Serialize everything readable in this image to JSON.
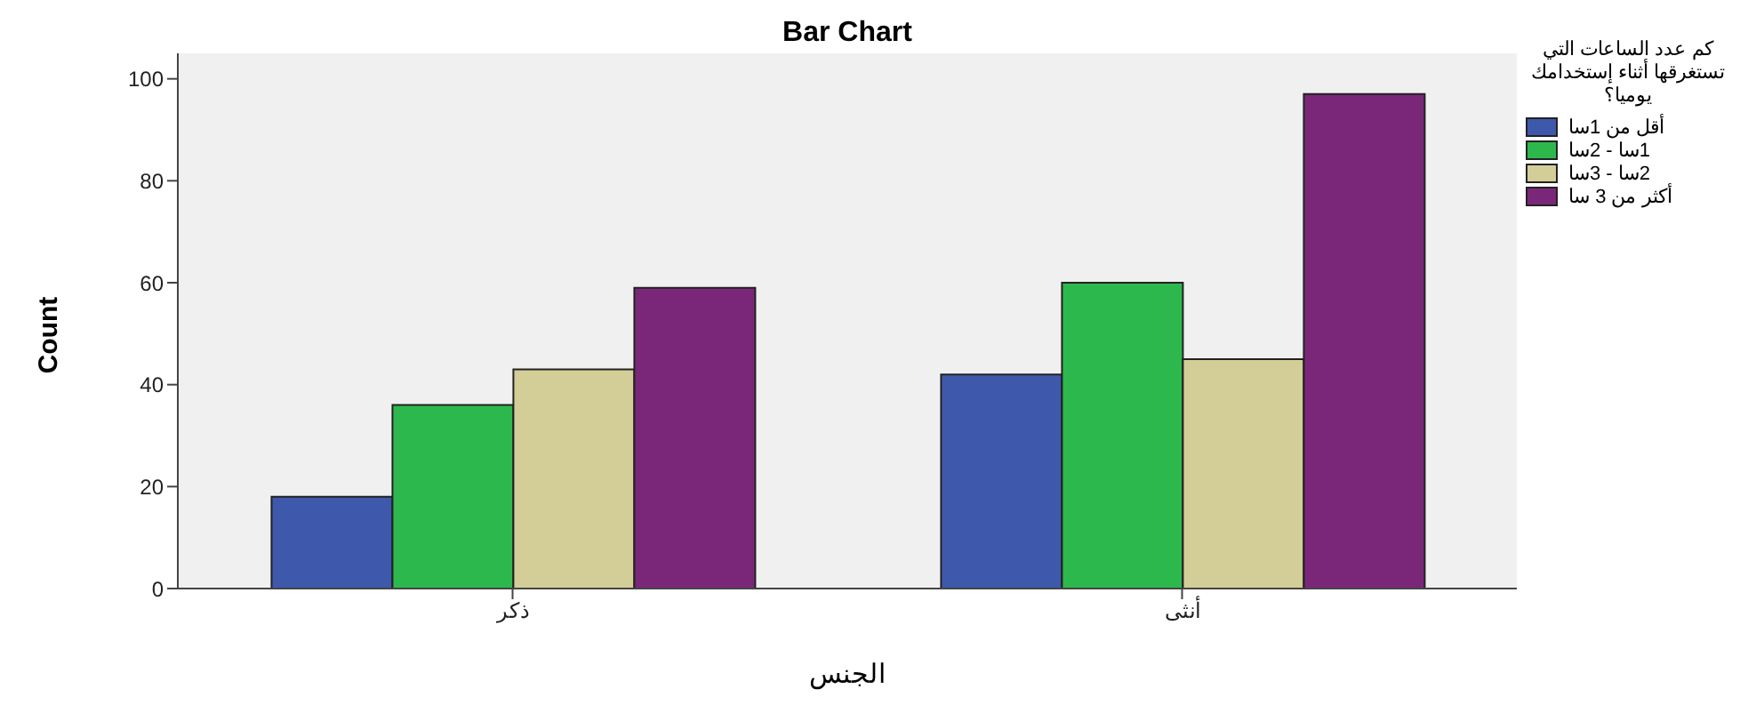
{
  "chart_data": {
    "type": "bar",
    "title": "Bar Chart",
    "xlabel": "الجنس",
    "ylabel": "Count",
    "legend_title": "كم عدد الساعات التي تستغرقها أثناء إستخدامك يوميا؟",
    "categories": [
      "ذكر",
      "أنثى"
    ],
    "series": [
      {
        "name": "أقل من 1سا",
        "color": "#3e58ac",
        "values": [
          18,
          42
        ]
      },
      {
        "name": "1سا - 2سا",
        "color": "#2db84d",
        "values": [
          36,
          60
        ]
      },
      {
        "name": "2سا - 3سا",
        "color": "#d3ce97",
        "values": [
          43,
          45
        ]
      },
      {
        "name": "أكثر من 3 سا",
        "color": "#7b2779",
        "values": [
          59,
          97
        ]
      }
    ],
    "ylim": [
      0,
      105
    ],
    "yticks": [
      0,
      20,
      40,
      60,
      80,
      100
    ],
    "grid": false,
    "legend": "right"
  }
}
